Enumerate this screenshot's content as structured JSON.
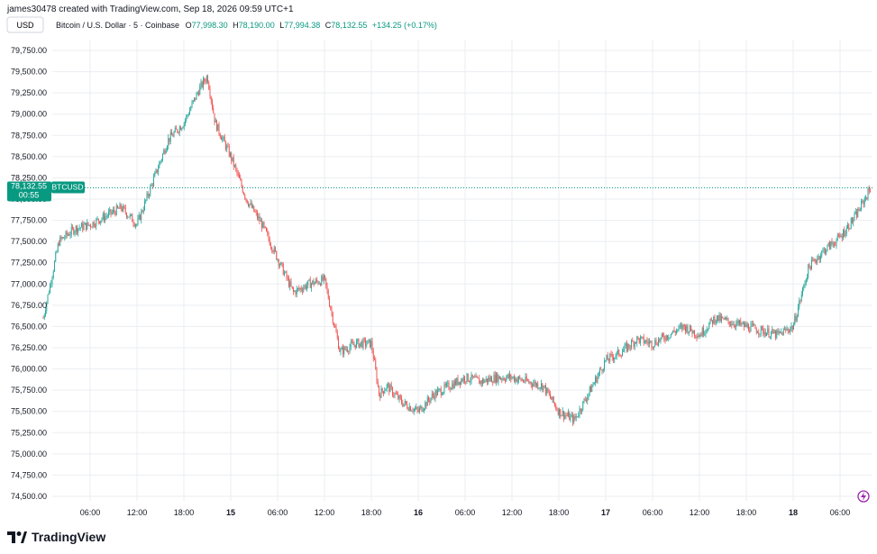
{
  "header": {
    "credit": "james30478 created with TradingView.com, Sep 18, 2026 09:59 UTC+1",
    "currency_button": "USD"
  },
  "legend": {
    "symbol": "Bitcoin / U.S. Dollar · 5 · Coinbase",
    "open_label": "O",
    "open": "77,998.30",
    "high_label": "H",
    "high": "78,190.00",
    "low_label": "L",
    "low": "77,994.38",
    "close_label": "C",
    "close": "78,132.55",
    "change": "+134.25 (+0.17%)"
  },
  "price_tag": {
    "price": "78,132.55",
    "countdown": "00:55",
    "symbol": "BTCUSD"
  },
  "brand": {
    "name": "TradingView",
    "logo_icon": "tradingview-logo-icon"
  },
  "colors": {
    "up": "#26a69a",
    "down": "#ef5350",
    "last_price": "#089981",
    "grid": "#ebedf1"
  },
  "chart_data": {
    "type": "candlestick",
    "title": "Bitcoin / U.S. Dollar · 5 · Coinbase",
    "ylim": [
      74500,
      79750
    ],
    "yticks": [
      "79,750.00",
      "79,500.00",
      "79,250.00",
      "79,000.00",
      "78,750.00",
      "78,500.00",
      "78,250.00",
      "78,000.00",
      "77,750.00",
      "77,500.00",
      "77,250.00",
      "77,000.00",
      "76,750.00",
      "76,500.00",
      "76,250.00",
      "76,000.00",
      "75,750.00",
      "75,500.00",
      "75,250.00",
      "75,000.00",
      "74,750.00",
      "74,500.00"
    ],
    "xticks": [
      "06:00",
      "12:00",
      "18:00",
      "15",
      "06:00",
      "12:00",
      "18:00",
      "16",
      "06:00",
      "12:00",
      "18:00",
      "17",
      "06:00",
      "12:00",
      "18:00",
      "18",
      "06:00"
    ],
    "day_ticks": [
      "15",
      "16",
      "17",
      "18"
    ],
    "grid": true,
    "last_price": 78132.55,
    "series": [
      {
        "x": [
          "14 00:00",
          "14 02:00",
          "14 04:00",
          "14 06:00",
          "14 08:00",
          "14 10:00",
          "14 12:00",
          "14 14:00",
          "14 16:00",
          "14 18:00",
          "14 20:00",
          "14 21:00",
          "14 22:00",
          "15 00:00",
          "15 02:00",
          "15 04:00",
          "15 06:00",
          "15 08:00",
          "15 10:00",
          "15 12:00",
          "15 14:00",
          "15 16:00",
          "15 18:00",
          "15 19:00",
          "15 20:00",
          "15 22:00",
          "16 00:00",
          "16 02:00",
          "16 04:00",
          "16 06:00",
          "16 08:00",
          "16 10:00",
          "16 12:00",
          "16 14:00",
          "16 16:00",
          "16 18:00",
          "16 20:00",
          "16 22:00",
          "17 00:00",
          "17 02:00",
          "17 04:00",
          "17 06:00",
          "17 08:00",
          "17 10:00",
          "17 12:00",
          "17 14:00",
          "17 16:00",
          "17 18:00",
          "17 20:00",
          "17 22:00",
          "18 00:00",
          "18 02:00",
          "18 04:00",
          "18 06:00",
          "18 08:00",
          "18 09:55"
        ],
        "values": [
          76600,
          77500,
          77650,
          77700,
          77800,
          77900,
          77700,
          78200,
          78700,
          78900,
          79300,
          79450,
          78900,
          78500,
          78000,
          77700,
          77300,
          76900,
          77000,
          77050,
          76200,
          76300,
          76300,
          75700,
          75800,
          75600,
          75500,
          75700,
          75800,
          75900,
          75850,
          75900,
          75900,
          75850,
          75800,
          75500,
          75400,
          75750,
          76100,
          76200,
          76350,
          76300,
          76400,
          76500,
          76400,
          76600,
          76550,
          76500,
          76450,
          76400,
          76500,
          77200,
          77400,
          77550,
          77800,
          78132.55
        ]
      }
    ]
  }
}
